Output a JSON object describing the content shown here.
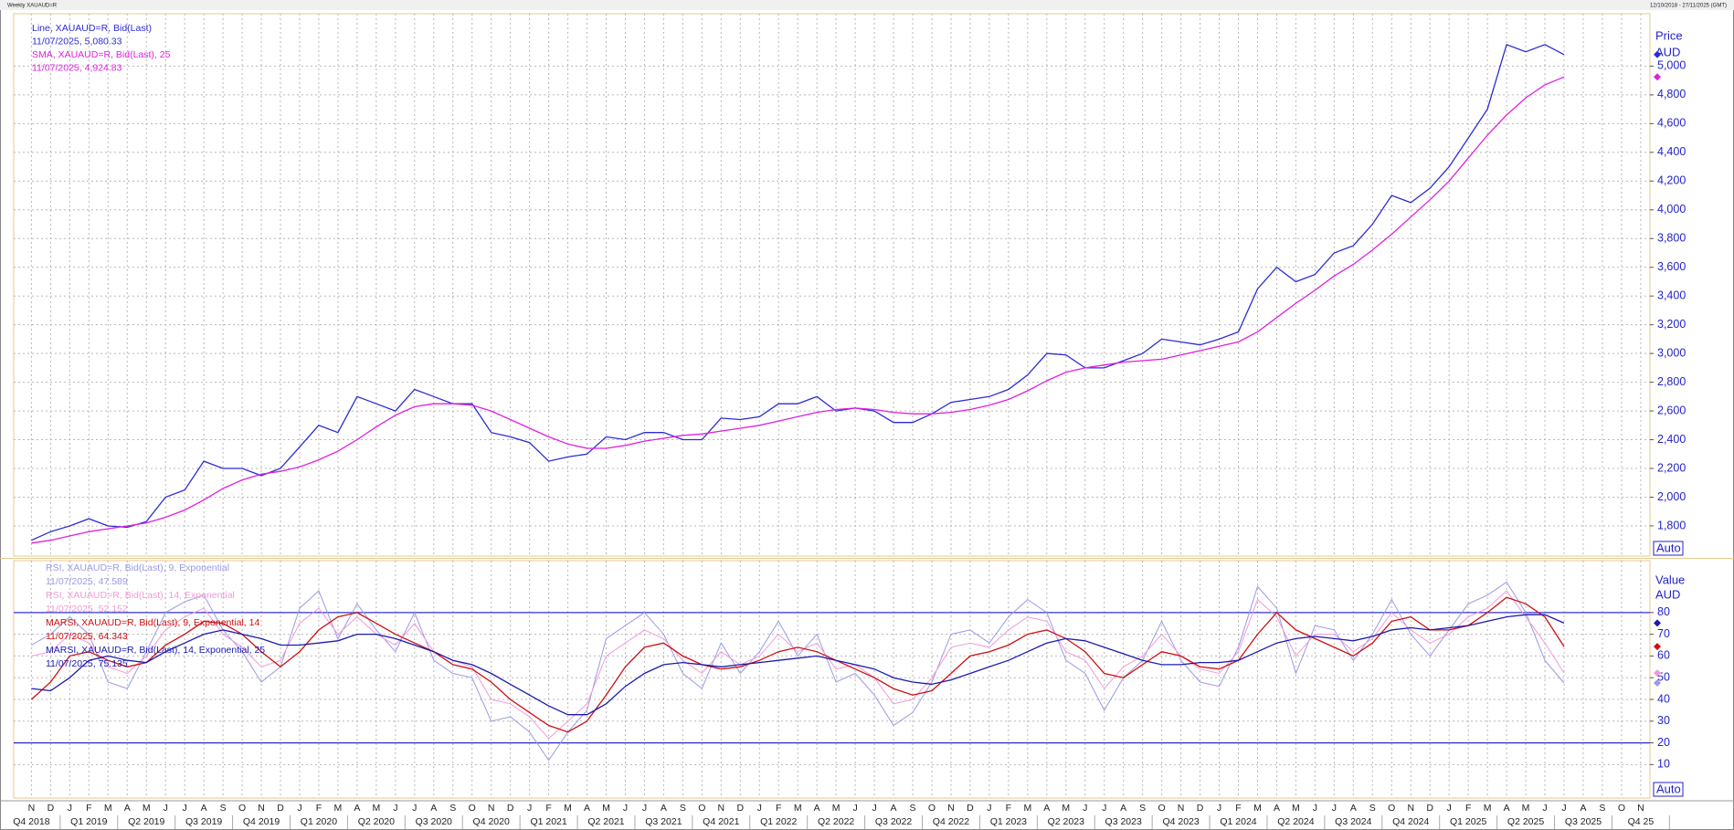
{
  "chart_data": [
    {
      "type": "line",
      "title": "Weekly XAUAUD=R",
      "subtitle": "12/10/2018 - 27/11/2025 (GMT)",
      "axis_title": "Price",
      "axis_unit": "AUD",
      "scale_mode": "Auto",
      "x": [
        "2018-11",
        "2018-12",
        "2019-01",
        "2019-02",
        "2019-03",
        "2019-04",
        "2019-05",
        "2019-06",
        "2019-07",
        "2019-08",
        "2019-09",
        "2019-10",
        "2019-11",
        "2019-12",
        "2020-01",
        "2020-02",
        "2020-03",
        "2020-04",
        "2020-05",
        "2020-06",
        "2020-07",
        "2020-08",
        "2020-09",
        "2020-10",
        "2020-11",
        "2020-12",
        "2021-01",
        "2021-02",
        "2021-03",
        "2021-04",
        "2021-05",
        "2021-06",
        "2021-07",
        "2021-08",
        "2021-09",
        "2021-10",
        "2021-11",
        "2021-12",
        "2022-01",
        "2022-02",
        "2022-03",
        "2022-04",
        "2022-05",
        "2022-06",
        "2022-07",
        "2022-08",
        "2022-09",
        "2022-10",
        "2022-11",
        "2022-12",
        "2023-01",
        "2023-02",
        "2023-03",
        "2023-04",
        "2023-05",
        "2023-06",
        "2023-07",
        "2023-08",
        "2023-09",
        "2023-10",
        "2023-11",
        "2023-12",
        "2024-01",
        "2024-02",
        "2024-03",
        "2024-04",
        "2024-05",
        "2024-06",
        "2024-07",
        "2024-08",
        "2024-09",
        "2024-10",
        "2024-11",
        "2024-12",
        "2025-01",
        "2025-02",
        "2025-03",
        "2025-04",
        "2025-05",
        "2025-06",
        "2025-07"
      ],
      "month_labels": [
        "N",
        "D",
        "J",
        "F",
        "M",
        "A",
        "M",
        "J",
        "J",
        "A",
        "S",
        "O",
        "N",
        "D",
        "J",
        "F",
        "M",
        "A",
        "M",
        "J",
        "J",
        "A",
        "S",
        "O",
        "N",
        "D",
        "J",
        "F",
        "M",
        "A",
        "M",
        "J",
        "J",
        "A",
        "S",
        "O",
        "N",
        "D",
        "J",
        "F",
        "M",
        "A",
        "M",
        "J",
        "J",
        "A",
        "S",
        "O",
        "N",
        "D",
        "J",
        "F",
        "M",
        "A",
        "M",
        "J",
        "J",
        "A",
        "S",
        "O",
        "N",
        "D",
        "J",
        "F",
        "M",
        "A",
        "M",
        "J",
        "J",
        "A",
        "S",
        "O",
        "N",
        "D",
        "J",
        "F",
        "M",
        "A",
        "M",
        "J",
        "J",
        "A",
        "S",
        "O",
        "N"
      ],
      "quarter_labels": [
        "Q4 2018",
        "Q1 2019",
        "Q2 2019",
        "Q3 2019",
        "Q4 2019",
        "Q1 2020",
        "Q2 2020",
        "Q3 2020",
        "Q4 2020",
        "Q1 2021",
        "Q2 2021",
        "Q3 2021",
        "Q4 2021",
        "Q1 2022",
        "Q2 2022",
        "Q3 2022",
        "Q4 2022",
        "Q1 2023",
        "Q2 2023",
        "Q3 2023",
        "Q4 2023",
        "Q1 2024",
        "Q2 2024",
        "Q3 2024",
        "Q4 2024",
        "Q1 2025",
        "Q2 2025",
        "Q3 2025",
        "Q4 25"
      ],
      "ylim": [
        1590,
        5365
      ],
      "yticks": [
        {
          "value": 1800,
          "label": "1,800"
        },
        {
          "value": 2000,
          "label": "2,000"
        },
        {
          "value": 2200,
          "label": "2,200"
        },
        {
          "value": 2400,
          "label": "2,400"
        },
        {
          "value": 2600,
          "label": "2,600"
        },
        {
          "value": 2800,
          "label": "2,800"
        },
        {
          "value": 3000,
          "label": "3,000"
        },
        {
          "value": 3200,
          "label": "3,200"
        },
        {
          "value": 3400,
          "label": "3,400"
        },
        {
          "value": 3600,
          "label": "3,600"
        },
        {
          "value": 3800,
          "label": "3,800"
        },
        {
          "value": 4000,
          "label": "4,000"
        },
        {
          "value": 4200,
          "label": "4,200"
        },
        {
          "value": 4400,
          "label": "4,400"
        },
        {
          "value": 4600,
          "label": "4,600"
        },
        {
          "value": 4800,
          "label": "4,800"
        },
        {
          "value": 5000,
          "label": "5,000"
        }
      ],
      "grid": true,
      "series": [
        {
          "name": "Line, XAUAUD=R, Bid(Last)",
          "legend_value": "11/07/2025, 5,080.33",
          "color": "#2b2bd6",
          "values": [
            1700,
            1760,
            1800,
            1850,
            1800,
            1790,
            1830,
            2000,
            2050,
            2250,
            2200,
            2200,
            2150,
            2200,
            2350,
            2500,
            2450,
            2700,
            2650,
            2600,
            2750,
            2700,
            2650,
            2650,
            2450,
            2420,
            2380,
            2250,
            2280,
            2300,
            2420,
            2400,
            2450,
            2450,
            2400,
            2400,
            2550,
            2540,
            2560,
            2650,
            2650,
            2700,
            2600,
            2620,
            2600,
            2520,
            2520,
            2580,
            2660,
            2680,
            2700,
            2750,
            2850,
            3000,
            2990,
            2900,
            2900,
            2950,
            3000,
            3100,
            3080,
            3060,
            3100,
            3150,
            3450,
            3600,
            3500,
            3550,
            3700,
            3750,
            3900,
            4100,
            4050,
            4150,
            4300,
            4500,
            4700,
            5150,
            5100,
            5150,
            5080.33
          ]
        },
        {
          "name": "SMA, XAUAUD=R, Bid(Last),  25",
          "legend_value": "11/07/2025, 4,924.83",
          "color": "#e020e0",
          "values": [
            1680,
            1700,
            1730,
            1760,
            1780,
            1800,
            1820,
            1860,
            1910,
            1980,
            2060,
            2120,
            2160,
            2180,
            2210,
            2260,
            2320,
            2400,
            2490,
            2570,
            2630,
            2650,
            2650,
            2640,
            2600,
            2540,
            2480,
            2420,
            2370,
            2340,
            2340,
            2360,
            2390,
            2410,
            2430,
            2440,
            2460,
            2480,
            2500,
            2530,
            2560,
            2590,
            2610,
            2620,
            2610,
            2590,
            2580,
            2580,
            2590,
            2610,
            2640,
            2680,
            2740,
            2810,
            2870,
            2900,
            2920,
            2940,
            2950,
            2960,
            2990,
            3020,
            3050,
            3080,
            3150,
            3250,
            3350,
            3440,
            3540,
            3620,
            3720,
            3830,
            3950,
            4070,
            4200,
            4360,
            4520,
            4660,
            4780,
            4870,
            4924.83
          ]
        }
      ]
    },
    {
      "type": "line",
      "axis_title": "Value",
      "axis_unit": "AUD",
      "scale_mode": "Auto",
      "ylim": [
        -5.4,
        103.9
      ],
      "yticks": [
        10,
        20,
        30,
        40,
        50,
        60,
        70,
        80
      ],
      "grid": true,
      "hlines": [
        80,
        20
      ],
      "hline_color": "#3333cc",
      "series": [
        {
          "name": "RSI, XAUAUD=R, Bid(Last),  9, Exponential",
          "legend_value": "11/07/2025, 47.589",
          "color": "#9a9ae6",
          "values": [
            65,
            70,
            78,
            70,
            48,
            45,
            62,
            80,
            85,
            88,
            72,
            62,
            48,
            55,
            82,
            90,
            68,
            84,
            72,
            62,
            80,
            58,
            52,
            50,
            30,
            32,
            25,
            12,
            25,
            35,
            68,
            74,
            80,
            70,
            52,
            45,
            66,
            52,
            62,
            76,
            60,
            70,
            48,
            52,
            42,
            28,
            34,
            48,
            70,
            72,
            66,
            78,
            86,
            80,
            58,
            52,
            35,
            50,
            58,
            76,
            58,
            48,
            46,
            64,
            92,
            82,
            52,
            74,
            72,
            58,
            70,
            86,
            70,
            60,
            72,
            84,
            88,
            94,
            80,
            58,
            47.589
          ]
        },
        {
          "name": "RSI, XAUAUD=R, Bid(Last),  14, Exponential",
          "legend_value": "11/07/2025, 52.152",
          "color": "#f29ad8",
          "values": [
            60,
            62,
            70,
            66,
            55,
            52,
            60,
            72,
            78,
            82,
            70,
            64,
            55,
            58,
            75,
            82,
            70,
            78,
            70,
            65,
            75,
            62,
            58,
            55,
            40,
            38,
            32,
            22,
            30,
            38,
            60,
            66,
            72,
            68,
            58,
            52,
            62,
            56,
            60,
            70,
            62,
            66,
            54,
            56,
            50,
            38,
            40,
            50,
            64,
            66,
            64,
            72,
            78,
            76,
            62,
            58,
            45,
            55,
            60,
            70,
            60,
            54,
            52,
            62,
            86,
            78,
            60,
            70,
            70,
            62,
            68,
            80,
            72,
            66,
            70,
            78,
            82,
            90,
            78,
            66,
            52.152
          ]
        },
        {
          "name": "MARSI, XAUAUD=R, Bid(Last),  9, Exponential, 14",
          "legend_value": "11/07/2025, 64.343",
          "color": "#cc1010",
          "values": [
            40,
            48,
            60,
            62,
            58,
            55,
            57,
            65,
            70,
            76,
            75,
            70,
            62,
            55,
            62,
            72,
            78,
            80,
            75,
            70,
            66,
            62,
            56,
            54,
            48,
            40,
            34,
            28,
            25,
            30,
            42,
            55,
            64,
            66,
            60,
            56,
            54,
            55,
            58,
            62,
            64,
            62,
            58,
            54,
            50,
            45,
            42,
            44,
            52,
            60,
            62,
            65,
            70,
            72,
            68,
            62,
            52,
            50,
            56,
            62,
            60,
            55,
            54,
            58,
            70,
            80,
            72,
            68,
            64,
            60,
            66,
            76,
            78,
            72,
            72,
            74,
            80,
            87,
            84,
            78,
            64.343
          ]
        },
        {
          "name": "MARSI, XAUAUD=R, Bid(Last),  14, Exponential, 25",
          "legend_value": "11/07/2025, 75.135",
          "color": "#1a1ab0",
          "values": [
            45,
            44,
            50,
            58,
            60,
            58,
            57,
            62,
            66,
            70,
            72,
            70,
            68,
            65,
            65,
            66,
            67,
            70,
            70,
            68,
            65,
            62,
            58,
            56,
            52,
            47,
            42,
            37,
            33,
            33,
            38,
            46,
            52,
            56,
            57,
            56,
            55,
            56,
            57,
            58,
            59,
            60,
            58,
            56,
            54,
            50,
            48,
            47,
            49,
            52,
            55,
            58,
            62,
            66,
            68,
            67,
            64,
            61,
            58,
            56,
            56,
            57,
            57,
            58,
            62,
            66,
            68,
            69,
            68,
            67,
            69,
            72,
            73,
            72,
            73,
            74,
            76,
            78,
            79,
            79,
            75.135
          ]
        }
      ]
    }
  ]
}
